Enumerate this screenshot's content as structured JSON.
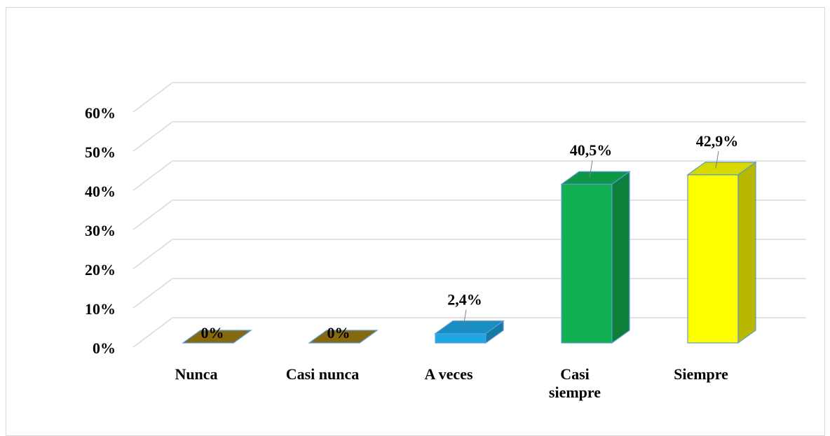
{
  "chart_data": {
    "type": "bar3d",
    "categories": [
      "Nunca",
      "Casi nunca",
      "A veces",
      "Casi siempre",
      "Siempre"
    ],
    "values": [
      0,
      0,
      2.4,
      40.5,
      42.9
    ],
    "value_labels": [
      "0%",
      "0%",
      "2,4%",
      "40,5%",
      "42,9%"
    ],
    "colors": [
      "#9c7c12",
      "#9c7c12",
      "#1ea7e4",
      "#12b052",
      "#ffff00"
    ],
    "ylim": [
      0,
      60
    ],
    "yticks": [
      {
        "value": 0,
        "label": "0%"
      },
      {
        "value": 10,
        "label": "10%"
      },
      {
        "value": 20,
        "label": "20%"
      },
      {
        "value": 30,
        "label": "30%"
      },
      {
        "value": 40,
        "label": "40%"
      },
      {
        "value": 50,
        "label": "50%"
      },
      {
        "value": 60,
        "label": "60%"
      }
    ],
    "grid": true
  }
}
